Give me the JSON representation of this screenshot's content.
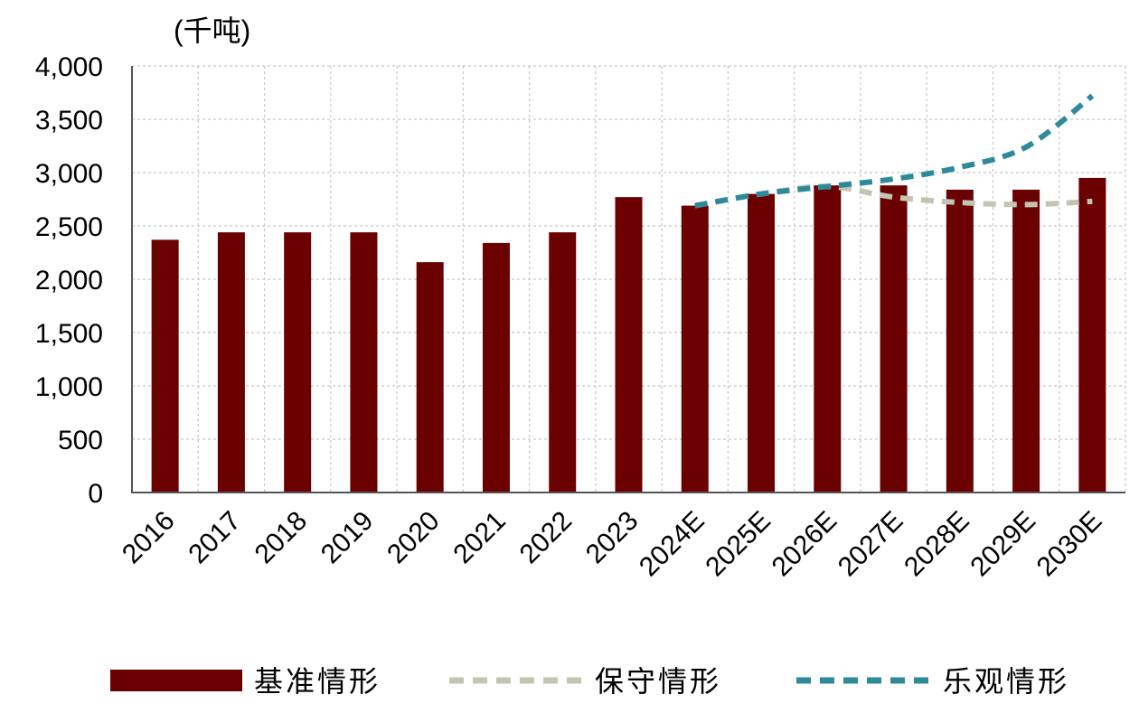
{
  "chart_data": {
    "type": "bar",
    "unit_label": "(千吨)",
    "categories": [
      "2016",
      "2017",
      "2018",
      "2019",
      "2020",
      "2021",
      "2022",
      "2023",
      "2024E",
      "2025E",
      "2026E",
      "2027E",
      "2028E",
      "2029E",
      "2030E"
    ],
    "ylim": [
      0,
      4000
    ],
    "yticks": [
      0,
      500,
      1000,
      1500,
      2000,
      2500,
      3000,
      3500,
      4000
    ],
    "ytick_labels": [
      "0",
      "500",
      "1,000",
      "1,500",
      "2,000",
      "2,500",
      "3,000",
      "3,500",
      "4,000"
    ],
    "grid": true,
    "legend_position": "bottom",
    "series": [
      {
        "name": "基准情形",
        "kind": "bar",
        "color": "#6b0000",
        "values": [
          2370,
          2440,
          2440,
          2440,
          2160,
          2340,
          2440,
          2770,
          2690,
          2800,
          2880,
          2880,
          2840,
          2840,
          2950
        ]
      },
      {
        "name": "保守情形",
        "kind": "dashed-line",
        "color": "#c4c3b4",
        "values": [
          null,
          null,
          null,
          null,
          null,
          null,
          null,
          null,
          2690,
          2800,
          2870,
          2770,
          2720,
          2700,
          2730
        ]
      },
      {
        "name": "乐观情形",
        "kind": "dashed-line",
        "color": "#2e8a9a",
        "values": [
          null,
          null,
          null,
          null,
          null,
          null,
          null,
          null,
          2690,
          2800,
          2870,
          2940,
          3050,
          3240,
          3720
        ]
      }
    ]
  }
}
